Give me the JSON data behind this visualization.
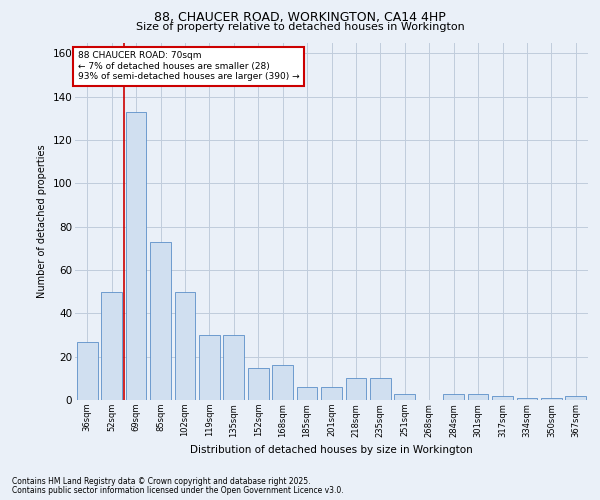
{
  "title1": "88, CHAUCER ROAD, WORKINGTON, CA14 4HP",
  "title2": "Size of property relative to detached houses in Workington",
  "xlabel": "Distribution of detached houses by size in Workington",
  "ylabel": "Number of detached properties",
  "categories": [
    "36sqm",
    "52sqm",
    "69sqm",
    "85sqm",
    "102sqm",
    "119sqm",
    "135sqm",
    "152sqm",
    "168sqm",
    "185sqm",
    "201sqm",
    "218sqm",
    "235sqm",
    "251sqm",
    "268sqm",
    "284sqm",
    "301sqm",
    "317sqm",
    "334sqm",
    "350sqm",
    "367sqm"
  ],
  "values": [
    27,
    50,
    133,
    73,
    50,
    30,
    30,
    15,
    16,
    6,
    6,
    10,
    10,
    3,
    0,
    3,
    3,
    2,
    1,
    1,
    2
  ],
  "bar_color": "#d0dff0",
  "bar_edge_color": "#5b8fc9",
  "vline_x_idx": 2,
  "vline_color": "#cc0000",
  "annotation_text": "88 CHAUCER ROAD: 70sqm\n← 7% of detached houses are smaller (28)\n93% of semi-detached houses are larger (390) →",
  "annotation_box_color": "#cc0000",
  "ylim": [
    0,
    165
  ],
  "yticks": [
    0,
    20,
    40,
    60,
    80,
    100,
    120,
    140,
    160
  ],
  "footnote1": "Contains HM Land Registry data © Crown copyright and database right 2025.",
  "footnote2": "Contains public sector information licensed under the Open Government Licence v3.0.",
  "bg_color": "#eaf0f8",
  "grid_color": "#c0ccdc"
}
